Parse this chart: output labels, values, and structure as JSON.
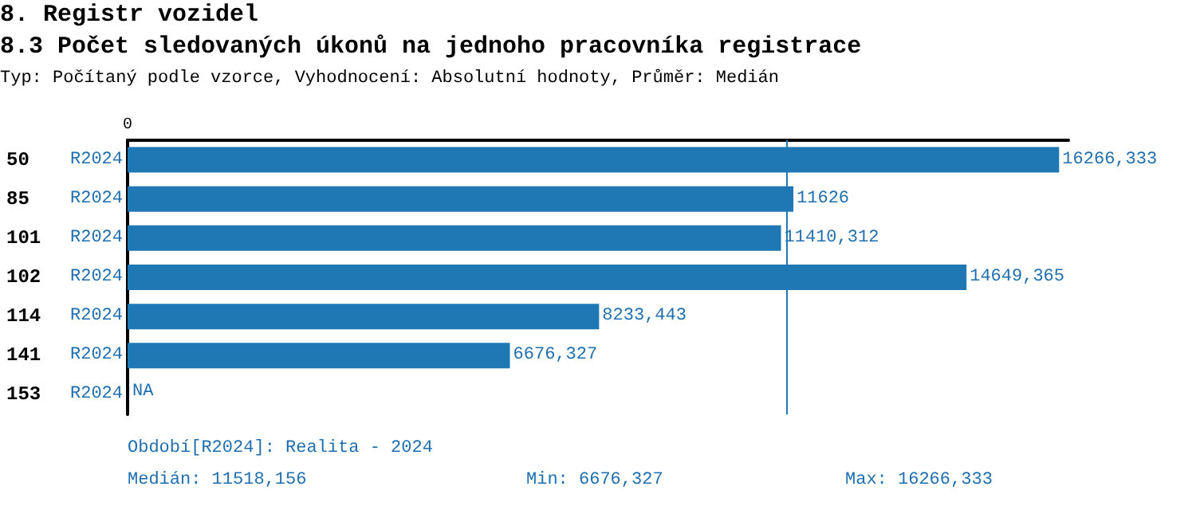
{
  "chart_data": {
    "type": "bar",
    "orientation": "horizontal",
    "title": "8. Registr vozidel",
    "subtitle": "8.3 Počet sledovaných úkonů na jednoho pracovníka registrace",
    "annotations": [
      "0",
      "Typ: Počítaný podle vzorce, Vyhodnocení: Absolutní hodnoty, Průměr: Medián",
      "Období[R2024]: Realita - 2024",
      "Medián: 11518,156",
      "Min: 6676,327",
      "Max: 16266,333"
    ],
    "categories": [
      "50",
      "85",
      "101",
      "102",
      "114",
      "141",
      "153"
    ],
    "series": [
      {
        "name": "R2024",
        "color": "#1f77b4",
        "values": [
          16266.333,
          11626,
          11410.312,
          14649.365,
          8233.443,
          6676.327,
          null
        ],
        "value_labels": [
          "16266,333",
          "11626",
          "11410,312",
          "14649,365",
          "8233,443",
          "6676,327",
          "NA"
        ]
      }
    ],
    "ref_lines": [
      {
        "axis": "x",
        "value": 11518.156,
        "color": "#1f77b4"
      }
    ],
    "grid": false,
    "legend": false
  }
}
